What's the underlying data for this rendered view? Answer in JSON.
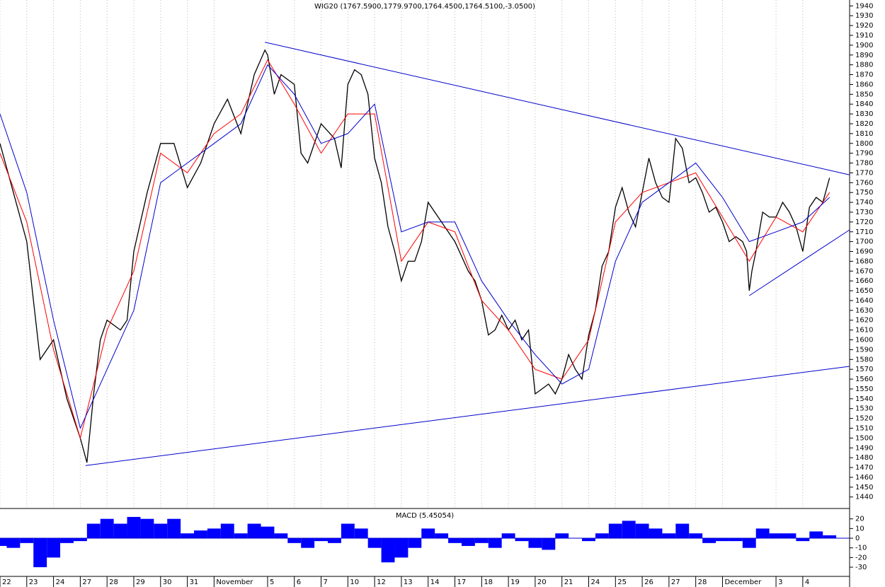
{
  "chart_data": [
    {
      "type": "line",
      "title": "WIG20 (1767.5900,1779.9700,1764.4500,1764.5100,-3.0500)",
      "xlim": [
        0,
        31.75
      ],
      "ylim": [
        1429,
        1946
      ],
      "yticks": [
        1440,
        1450,
        1460,
        1470,
        1480,
        1490,
        1500,
        1510,
        1520,
        1530,
        1540,
        1550,
        1560,
        1570,
        1580,
        1590,
        1600,
        1610,
        1620,
        1630,
        1640,
        1650,
        1660,
        1670,
        1680,
        1690,
        1700,
        1710,
        1720,
        1730,
        1740,
        1750,
        1760,
        1770,
        1780,
        1790,
        1800,
        1810,
        1820,
        1830,
        1840,
        1850,
        1860,
        1870,
        1880,
        1890,
        1900,
        1910,
        1920,
        1930,
        1940
      ],
      "series": [
        {
          "color": "#000000",
          "x": [
            0,
            0.5,
            1,
            1.5,
            2,
            2.5,
            3,
            3.25,
            3.5,
            3.75,
            4,
            4.5,
            4.75,
            5,
            5.5,
            6,
            6.5,
            7,
            7.5,
            8,
            8.5,
            9,
            9.5,
            9.9,
            10,
            10.25,
            10.5,
            11,
            11.25,
            11.5,
            12,
            12.5,
            12.75,
            13,
            13.25,
            13.5,
            13.75,
            14,
            14.25,
            14.5,
            14.75,
            15,
            15.25,
            15.5,
            15.75,
            16,
            16.5,
            17,
            17.5,
            17.75,
            18,
            18.25,
            18.5,
            18.75,
            19,
            19.25,
            19.5,
            19.75,
            20,
            20.25,
            20.5,
            20.75,
            21,
            21.25,
            21.5,
            21.75,
            22,
            22.25,
            22.5,
            22.75,
            23,
            23.25,
            23.5,
            23.75,
            24,
            24.25,
            24.5,
            24.75,
            25,
            25.25,
            25.5,
            25.75,
            26,
            26.25,
            26.5,
            26.75,
            27,
            27.25,
            27.5,
            27.75,
            27.9,
            28,
            28.1,
            28.25,
            28.5,
            28.75,
            29,
            29.25,
            29.5,
            29.75,
            30,
            30.25,
            30.5,
            30.75,
            31
          ],
          "values": [
            1800,
            1750,
            1700,
            1580,
            1600,
            1540,
            1500,
            1475,
            1545,
            1600,
            1620,
            1610,
            1620,
            1690,
            1750,
            1800,
            1800,
            1755,
            1780,
            1820,
            1845,
            1810,
            1870,
            1895,
            1890,
            1850,
            1870,
            1860,
            1790,
            1780,
            1820,
            1805,
            1775,
            1860,
            1875,
            1870,
            1850,
            1785,
            1760,
            1715,
            1690,
            1660,
            1680,
            1680,
            1700,
            1740,
            1720,
            1700,
            1670,
            1660,
            1640,
            1605,
            1610,
            1625,
            1610,
            1620,
            1600,
            1610,
            1545,
            1550,
            1555,
            1545,
            1560,
            1585,
            1570,
            1560,
            1605,
            1630,
            1675,
            1690,
            1735,
            1755,
            1730,
            1715,
            1750,
            1785,
            1760,
            1745,
            1740,
            1805,
            1795,
            1760,
            1765,
            1750,
            1730,
            1735,
            1720,
            1700,
            1705,
            1700,
            1690,
            1650,
            1670,
            1690,
            1730,
            1725,
            1725,
            1740,
            1730,
            1715,
            1690,
            1735,
            1745,
            1740,
            1765
          ]
        },
        {
          "color": "#ff0000",
          "x": [
            0,
            1,
            2,
            3,
            4,
            5,
            6,
            7,
            8,
            9,
            10,
            11,
            12,
            13,
            14,
            15,
            16,
            17,
            18,
            19,
            20,
            21,
            22,
            23,
            24,
            25,
            26,
            27,
            28,
            29,
            30,
            31
          ],
          "values": [
            1790,
            1720,
            1590,
            1500,
            1610,
            1670,
            1790,
            1770,
            1810,
            1830,
            1885,
            1840,
            1790,
            1830,
            1830,
            1680,
            1720,
            1710,
            1640,
            1610,
            1570,
            1560,
            1600,
            1720,
            1750,
            1760,
            1770,
            1725,
            1680,
            1725,
            1710,
            1750
          ]
        },
        {
          "color": "#0000cc",
          "x": [
            0,
            1,
            2,
            3,
            4,
            5,
            6,
            7,
            8,
            9,
            10,
            11,
            12,
            13,
            14,
            15,
            16,
            17,
            18,
            19,
            20,
            21,
            22,
            23,
            24,
            25,
            26,
            27,
            28,
            29,
            30,
            31
          ],
          "values": [
            1830,
            1750,
            1620,
            1510,
            1570,
            1630,
            1760,
            1780,
            1800,
            1820,
            1880,
            1850,
            1800,
            1810,
            1840,
            1710,
            1720,
            1720,
            1660,
            1620,
            1585,
            1555,
            1570,
            1680,
            1740,
            1760,
            1780,
            1745,
            1700,
            1710,
            1720,
            1745
          ]
        }
      ],
      "trendlines": [
        {
          "color": "#0000cc",
          "x": [
            9.9,
            31.75
          ],
          "values": [
            1903,
            1768
          ]
        },
        {
          "color": "#0000cc",
          "x": [
            3.2,
            31.75
          ],
          "values": [
            1472,
            1573
          ]
        },
        {
          "color": "#0000cc",
          "x": [
            28,
            31.75
          ],
          "values": [
            1645,
            1712
          ]
        }
      ]
    },
    {
      "type": "bar",
      "title": "MACD (5.45054)",
      "color": "#0000ff",
      "xlim": [
        0,
        31.75
      ],
      "ylim": [
        -39.5,
        30
      ],
      "yticks": [
        20,
        10,
        0,
        -10,
        -20,
        -30
      ],
      "xticks": [
        {
          "value": 0,
          "label": "22"
        },
        {
          "value": 1,
          "label": "23"
        },
        {
          "value": 2,
          "label": "24"
        },
        {
          "value": 3,
          "label": "27"
        },
        {
          "value": 4,
          "label": "28"
        },
        {
          "value": 5,
          "label": "29"
        },
        {
          "value": 6,
          "label": "30"
        },
        {
          "value": 7,
          "label": "31"
        },
        {
          "value": 8,
          "label": "November"
        },
        {
          "value": 10,
          "label": "5"
        },
        {
          "value": 11,
          "label": "6"
        },
        {
          "value": 12,
          "label": "7"
        },
        {
          "value": 13,
          "label": "10"
        },
        {
          "value": 14,
          "label": "12"
        },
        {
          "value": 15,
          "label": "13"
        },
        {
          "value": 16,
          "label": "14"
        },
        {
          "value": 17,
          "label": "17"
        },
        {
          "value": 18,
          "label": "18"
        },
        {
          "value": 19,
          "label": "19"
        },
        {
          "value": 20,
          "label": "20"
        },
        {
          "value": 21,
          "label": "21"
        },
        {
          "value": 22,
          "label": "24"
        },
        {
          "value": 23,
          "label": "25"
        },
        {
          "value": 24,
          "label": "26"
        },
        {
          "value": 25,
          "label": "27"
        },
        {
          "value": 26,
          "label": "28"
        },
        {
          "value": 27,
          "label": "December"
        },
        {
          "value": 29,
          "label": "3"
        },
        {
          "value": 30,
          "label": "4"
        }
      ],
      "x": [
        0,
        0.5,
        1,
        1.5,
        2,
        2.5,
        3,
        3.5,
        4,
        4.5,
        5,
        5.5,
        6,
        6.5,
        7,
        7.5,
        8,
        8.5,
        9,
        9.5,
        10,
        10.5,
        11,
        11.5,
        12,
        12.5,
        13,
        13.5,
        14,
        14.5,
        15,
        15.5,
        16,
        16.5,
        17,
        17.5,
        18,
        18.5,
        19,
        19.5,
        20,
        20.5,
        21,
        21.5,
        22,
        22.5,
        23,
        23.5,
        24,
        24.5,
        25,
        25.5,
        26,
        26.5,
        27,
        27.5,
        28,
        28.5,
        29,
        29.5,
        30,
        30.5,
        31
      ],
      "values": [
        -8,
        -10,
        -5,
        -30,
        -20,
        -5,
        -3,
        15,
        20,
        15,
        22,
        20,
        15,
        20,
        5,
        8,
        10,
        15,
        5,
        15,
        12,
        5,
        -5,
        -10,
        -3,
        -5,
        15,
        10,
        -10,
        -25,
        -20,
        -10,
        10,
        5,
        -5,
        -8,
        -5,
        -10,
        5,
        -3,
        -10,
        -12,
        5,
        0,
        -3,
        5,
        15,
        18,
        15,
        10,
        5,
        15,
        5,
        -5,
        -3,
        -3,
        -10,
        10,
        5,
        5,
        -3,
        7,
        3
      ]
    }
  ]
}
